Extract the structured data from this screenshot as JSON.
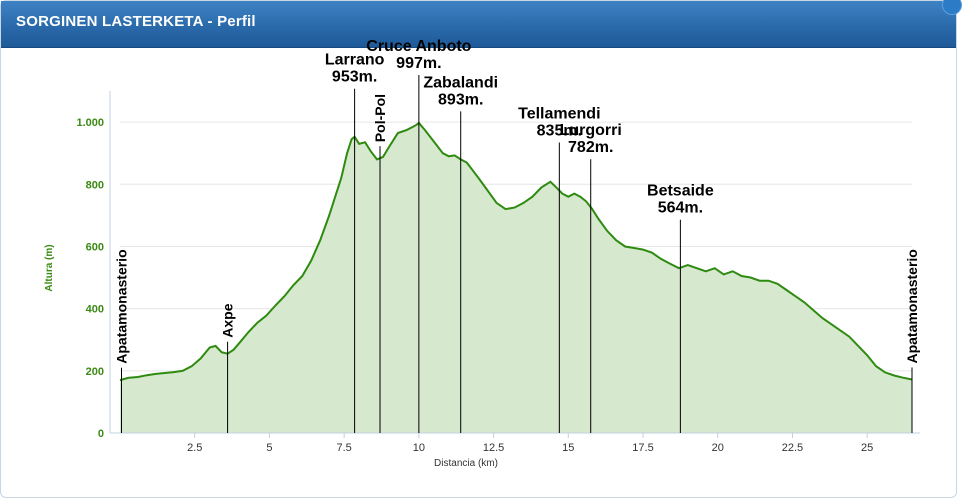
{
  "header": {
    "title": "SORGINEN LASTERKETA - Perfil"
  },
  "colors": {
    "header_bg": "#2a6aab",
    "line": "#2e8b10",
    "fill": "#d6e8cd",
    "axis_title": "#3a8a14",
    "y_tick": "#3a8a14"
  },
  "chart_data": {
    "type": "area",
    "title": "",
    "xlabel": "Distancia (km)",
    "ylabel": "Altura (m)",
    "xlim": [
      0,
      26.5
    ],
    "ylim": [
      0,
      1100
    ],
    "grid": true,
    "x_ticks": [
      2.5,
      5,
      7.5,
      10,
      12.5,
      15,
      17.5,
      20,
      22.5,
      25
    ],
    "x_tick_labels": [
      "2.5",
      "5",
      "7.5",
      "10",
      "12.5",
      "15",
      "17.5",
      "20",
      "22.5",
      "25"
    ],
    "y_ticks": [
      0,
      200,
      400,
      600,
      800,
      1000
    ],
    "y_tick_labels": [
      "0",
      "200",
      "400",
      "600",
      "800",
      "1.000"
    ],
    "series": [
      {
        "x": [
          0,
          0.3,
          0.6,
          0.9,
          1.2,
          1.5,
          1.8,
          2.1,
          2.4,
          2.7,
          3.0,
          3.2,
          3.4,
          3.6,
          3.8,
          4.0,
          4.3,
          4.6,
          4.9,
          5.2,
          5.5,
          5.8,
          6.1,
          6.4,
          6.7,
          7.0,
          7.2,
          7.4,
          7.6,
          7.75,
          7.85,
          8.0,
          8.2,
          8.4,
          8.6,
          8.8,
          9.0,
          9.3,
          9.6,
          9.9,
          10.0,
          10.2,
          10.4,
          10.6,
          10.8,
          11.0,
          11.2,
          11.4,
          11.6,
          11.8,
          12.0,
          12.3,
          12.6,
          12.9,
          13.2,
          13.5,
          13.8,
          14.1,
          14.4,
          14.6,
          14.8,
          15.0,
          15.2,
          15.4,
          15.6,
          15.8,
          16.0,
          16.3,
          16.6,
          16.9,
          17.2,
          17.5,
          17.8,
          18.1,
          18.4,
          18.7,
          19.0,
          19.3,
          19.6,
          19.9,
          20.2,
          20.5,
          20.8,
          21.1,
          21.4,
          21.7,
          22.0,
          22.3,
          22.6,
          22.9,
          23.2,
          23.5,
          23.8,
          24.1,
          24.4,
          24.7,
          25.0,
          25.3,
          25.6,
          25.9,
          26.2,
          26.5
        ],
        "y": [
          170,
          178,
          180,
          186,
          190,
          193,
          196,
          200,
          215,
          240,
          275,
          280,
          260,
          255,
          268,
          290,
          325,
          355,
          378,
          410,
          440,
          475,
          505,
          555,
          620,
          700,
          760,
          820,
          900,
          945,
          953,
          930,
          935,
          905,
          880,
          888,
          920,
          965,
          975,
          990,
          997,
          975,
          950,
          925,
          900,
          890,
          893,
          880,
          870,
          845,
          820,
          780,
          740,
          720,
          725,
          740,
          760,
          790,
          808,
          790,
          770,
          760,
          770,
          760,
          745,
          720,
          690,
          650,
          620,
          600,
          595,
          590,
          580,
          560,
          545,
          530,
          540,
          530,
          520,
          530,
          510,
          520,
          505,
          500,
          490,
          490,
          480,
          460,
          440,
          420,
          395,
          370,
          350,
          330,
          310,
          280,
          250,
          215,
          195,
          185,
          178,
          172
        ]
      }
    ],
    "vertical_markers": [
      {
        "x": 0.05,
        "label": "Apatamonasterio",
        "rotated": true
      },
      {
        "x": 3.6,
        "label": "Axpe",
        "rotated": true
      },
      {
        "x": 7.85,
        "label": "Larrano\n953m."
      },
      {
        "x": 8.7,
        "label": "Pol-Pol",
        "rotated": true
      },
      {
        "x": 10.0,
        "label": "Cruce Anboto\n997m."
      },
      {
        "x": 11.4,
        "label": "Zabalandi\n893m."
      },
      {
        "x": 14.7,
        "label": "Tellamendi\n835m."
      },
      {
        "x": 15.75,
        "label": "Lurgorri\n782m."
      },
      {
        "x": 18.75,
        "label": "Betsaide\n564m."
      },
      {
        "x": 26.5,
        "label": "Apatamonasterio",
        "rotated": true
      }
    ]
  }
}
